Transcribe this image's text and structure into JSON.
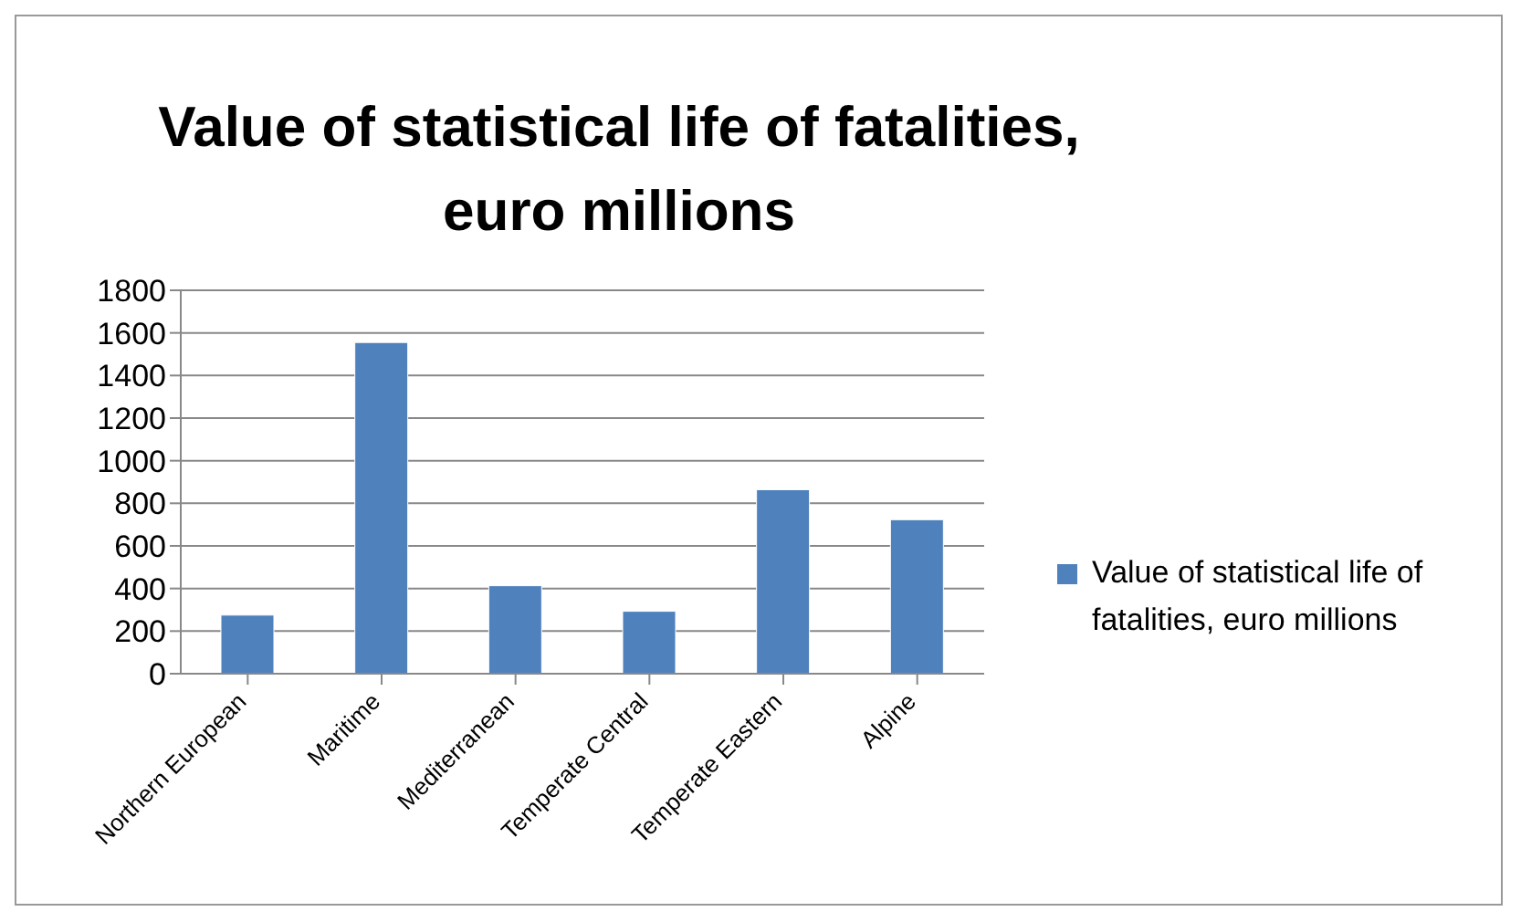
{
  "chart_data": {
    "type": "bar",
    "title": "Value of statistical life of fatalities, euro millions",
    "categories": [
      "Northern European",
      "Maritime",
      "Mediterranean",
      "Temperate Central",
      "Temperate Eastern",
      "Alpine"
    ],
    "series": [
      {
        "name": "Value of statistical life of fatalities, euro millions",
        "color": "#4f81bd",
        "values": [
          275,
          1555,
          413,
          293,
          864,
          723
        ]
      }
    ],
    "ylim": [
      0,
      1800
    ],
    "yticks": [
      0,
      200,
      400,
      600,
      800,
      1000,
      1200,
      1400,
      1600,
      1800
    ],
    "grid": "y",
    "legend": "right"
  }
}
